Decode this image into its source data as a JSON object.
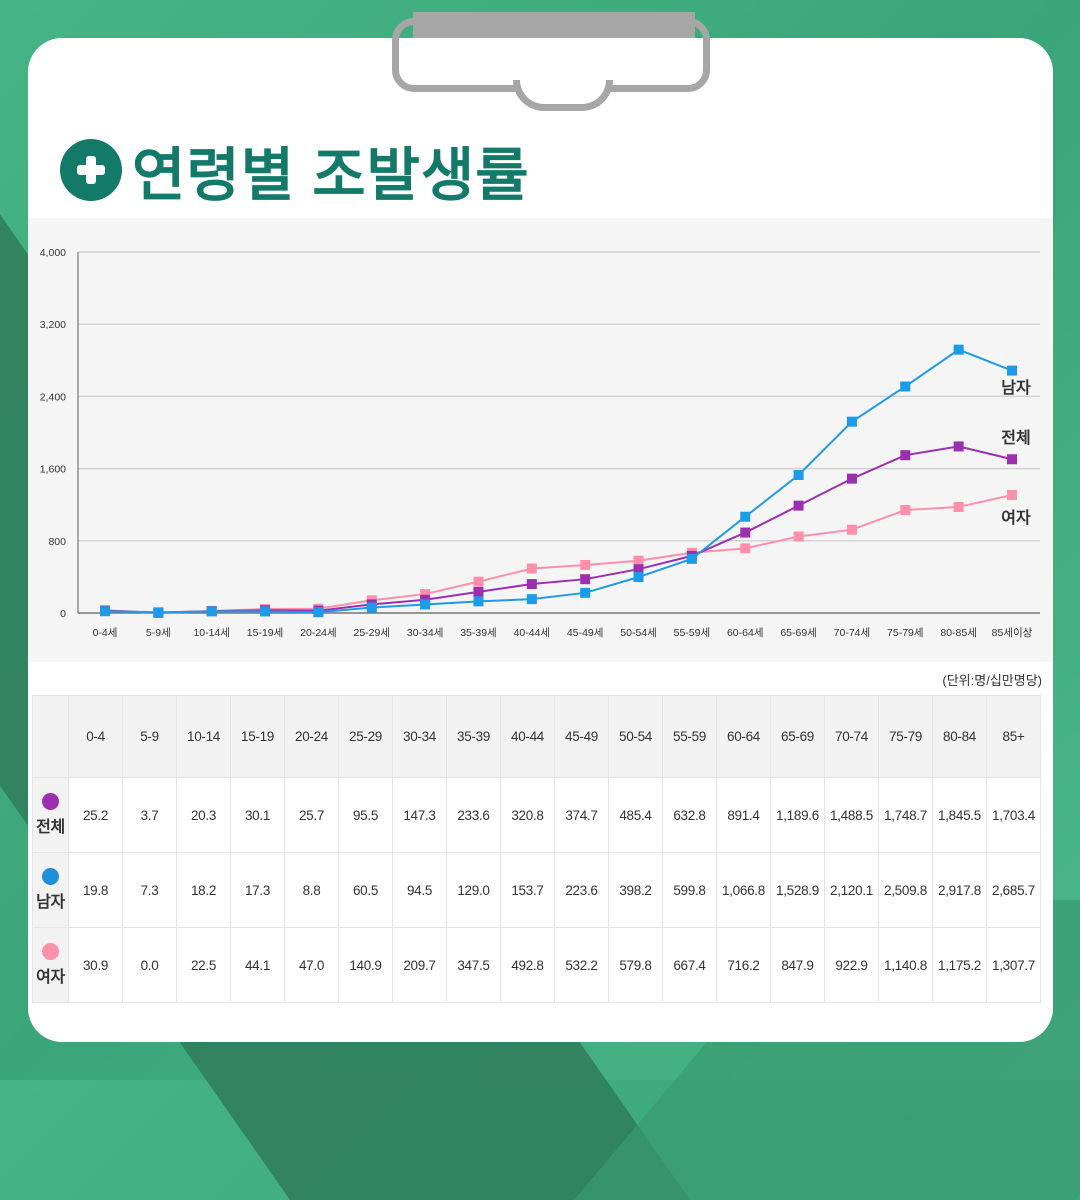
{
  "title": "연령별 조발생률",
  "unit_note": "(단위:명/십만명당)",
  "colors": {
    "total": "#9c2fb0",
    "male": "#1e9be8",
    "female": "#ff8fab",
    "title": "#137a6a"
  },
  "chart_data": {
    "type": "line",
    "categories": [
      "0-4세",
      "5-9세",
      "10-14세",
      "15-19세",
      "20-24세",
      "25-29세",
      "30-34세",
      "35-39세",
      "40-44세",
      "45-49세",
      "50-54세",
      "55-59세",
      "60-64세",
      "65-69세",
      "70-74세",
      "75-79세",
      "80-85세",
      "85세이상"
    ],
    "ylim": [
      0,
      4000
    ],
    "yticks": [
      "0",
      "800",
      "1,600",
      "2,400",
      "3,200",
      "4,000"
    ],
    "ytick_values": [
      0,
      800,
      1600,
      2400,
      3200,
      4000
    ],
    "grid": true,
    "marker": "square",
    "series": [
      {
        "name": "남자",
        "color": "#1e9be8",
        "values": [
          19.8,
          7.3,
          18.2,
          17.3,
          8.8,
          60.5,
          94.5,
          129.0,
          153.7,
          223.6,
          398.2,
          599.8,
          1066.8,
          1528.9,
          2120.1,
          2509.8,
          2917.8,
          2685.7
        ]
      },
      {
        "name": "전체",
        "color": "#9c2fb0",
        "values": [
          25.2,
          3.7,
          20.3,
          30.1,
          25.7,
          95.5,
          147.3,
          233.6,
          320.8,
          374.7,
          485.4,
          632.8,
          891.4,
          1189.6,
          1488.5,
          1748.7,
          1845.5,
          1703.4
        ]
      },
      {
        "name": "여자",
        "color": "#ff8fab",
        "values": [
          30.9,
          0.0,
          22.5,
          44.1,
          47.0,
          140.9,
          209.7,
          347.5,
          492.8,
          532.2,
          579.8,
          667.4,
          716.2,
          847.9,
          922.9,
          1140.8,
          1175.2,
          1307.7
        ]
      }
    ]
  },
  "table": {
    "headers": [
      "0-4",
      "5-9",
      "10-14",
      "15-19",
      "20-24",
      "25-29",
      "30-34",
      "35-39",
      "40-44",
      "45-49",
      "50-54",
      "55-59",
      "60-64",
      "65-69",
      "70-74",
      "75-79",
      "80-84",
      "85+"
    ],
    "rows": [
      {
        "label": "전체",
        "color": "#9c2fb0",
        "cells": [
          "25.2",
          "3.7",
          "20.3",
          "30.1",
          "25.7",
          "95.5",
          "147.3",
          "233.6",
          "320.8",
          "374.7",
          "485.4",
          "632.8",
          "891.4",
          "1,189.6",
          "1,488.5",
          "1,748.7",
          "1,845.5",
          "1,703.4"
        ]
      },
      {
        "label": "남자",
        "color": "#1e8fd8",
        "cells": [
          "19.8",
          "7.3",
          "18.2",
          "17.3",
          "8.8",
          "60.5",
          "94.5",
          "129.0",
          "153.7",
          "223.6",
          "398.2",
          "599.8",
          "1,066.8",
          "1,528.9",
          "2,120.1",
          "2,509.8",
          "2,917.8",
          "2,685.7"
        ]
      },
      {
        "label": "여자",
        "color": "#ff8fab",
        "cells": [
          "30.9",
          "0.0",
          "22.5",
          "44.1",
          "47.0",
          "140.9",
          "209.7",
          "347.5",
          "492.8",
          "532.2",
          "579.8",
          "667.4",
          "716.2",
          "847.9",
          "922.9",
          "1,140.8",
          "1,175.2",
          "1,307.7"
        ]
      }
    ]
  }
}
